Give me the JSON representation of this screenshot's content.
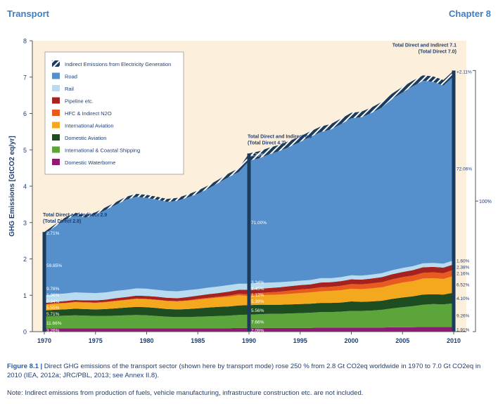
{
  "header": {
    "left": "Transport",
    "right": "Chapter 8"
  },
  "caption": {
    "label": "Figure 8.1 |",
    "text": " Direct GHG emissions of the transport sector (shown here by transport mode) rose 250 % from 2.8 Gt CO2eq worldwide in 1970 to 7.0 Gt CO2eq in 2010 (IEA, 2012a; JRC/PBL, 2013; see Annex II.8)."
  },
  "note": "Note: Indirect emissions from production of fuels, vehicle manufacturing, infrastructure construction etc. are not included.",
  "chart_data": {
    "type": "area",
    "ylabel": "GHG Emissions [GtCO2 eq/yr]",
    "xlim": [
      1970,
      2010
    ],
    "ylim": [
      0,
      8
    ],
    "xticks": [
      1970,
      1975,
      1980,
      1985,
      1990,
      1995,
      2000,
      2005,
      2010
    ],
    "yticks": [
      0,
      1,
      2,
      3,
      4,
      5,
      6,
      7,
      8
    ],
    "legend_position": "top-left",
    "x": [
      1970,
      1971,
      1972,
      1973,
      1974,
      1975,
      1976,
      1977,
      1978,
      1979,
      1980,
      1981,
      1982,
      1983,
      1984,
      1985,
      1986,
      1987,
      1988,
      1989,
      1990,
      1991,
      1992,
      1993,
      1994,
      1995,
      1996,
      1997,
      1998,
      1999,
      2000,
      2001,
      2002,
      2003,
      2004,
      2005,
      2006,
      2007,
      2008,
      2009,
      2010
    ],
    "series": [
      {
        "name": "Domestic Waterborne",
        "color": "#8e1a73",
        "values": [
          0.09,
          0.09,
          0.09,
          0.09,
          0.09,
          0.09,
          0.09,
          0.09,
          0.09,
          0.09,
          0.09,
          0.09,
          0.09,
          0.09,
          0.09,
          0.09,
          0.09,
          0.09,
          0.09,
          0.1,
          0.1,
          0.1,
          0.1,
          0.1,
          0.1,
          0.1,
          0.1,
          0.11,
          0.11,
          0.11,
          0.11,
          0.11,
          0.11,
          0.11,
          0.12,
          0.12,
          0.12,
          0.13,
          0.13,
          0.13,
          0.13
        ]
      },
      {
        "name": "International & Coastal Shipping",
        "color": "#5ba53a",
        "values": [
          0.33,
          0.34,
          0.35,
          0.36,
          0.35,
          0.34,
          0.34,
          0.35,
          0.36,
          0.37,
          0.36,
          0.34,
          0.32,
          0.31,
          0.31,
          0.32,
          0.33,
          0.34,
          0.35,
          0.36,
          0.37,
          0.38,
          0.39,
          0.39,
          0.4,
          0.41,
          0.42,
          0.43,
          0.43,
          0.44,
          0.46,
          0.46,
          0.47,
          0.49,
          0.52,
          0.55,
          0.58,
          0.61,
          0.63,
          0.62,
          0.65
        ]
      },
      {
        "name": "Domestic Aviation",
        "color": "#1e4d22",
        "values": [
          0.16,
          0.17,
          0.17,
          0.18,
          0.18,
          0.18,
          0.19,
          0.2,
          0.21,
          0.22,
          0.22,
          0.22,
          0.21,
          0.21,
          0.22,
          0.23,
          0.24,
          0.25,
          0.25,
          0.26,
          0.26,
          0.26,
          0.25,
          0.25,
          0.25,
          0.25,
          0.25,
          0.25,
          0.25,
          0.25,
          0.26,
          0.25,
          0.25,
          0.25,
          0.26,
          0.27,
          0.27,
          0.28,
          0.27,
          0.27,
          0.29
        ]
      },
      {
        "name": "International Aviation",
        "color": "#f4a81d",
        "values": [
          0.16,
          0.17,
          0.17,
          0.18,
          0.18,
          0.18,
          0.19,
          0.2,
          0.21,
          0.22,
          0.22,
          0.22,
          0.22,
          0.22,
          0.23,
          0.24,
          0.25,
          0.26,
          0.27,
          0.28,
          0.25,
          0.26,
          0.27,
          0.28,
          0.29,
          0.3,
          0.31,
          0.32,
          0.33,
          0.34,
          0.35,
          0.35,
          0.36,
          0.37,
          0.39,
          0.41,
          0.42,
          0.44,
          0.44,
          0.43,
          0.46
        ]
      },
      {
        "name": "HFC & Indirect N2O",
        "color": "#e85a1e",
        "values": [
          0.01,
          0.01,
          0.01,
          0.01,
          0.01,
          0.01,
          0.01,
          0.01,
          0.01,
          0.01,
          0.01,
          0.01,
          0.01,
          0.01,
          0.01,
          0.02,
          0.02,
          0.02,
          0.03,
          0.04,
          0.05,
          0.06,
          0.07,
          0.08,
          0.09,
          0.1,
          0.1,
          0.11,
          0.11,
          0.12,
          0.13,
          0.13,
          0.14,
          0.14,
          0.15,
          0.15,
          0.15,
          0.16,
          0.16,
          0.16,
          0.17
        ]
      },
      {
        "name": "Pipeline etc.",
        "color": "#a6221f",
        "values": [
          0.04,
          0.04,
          0.05,
          0.05,
          0.05,
          0.06,
          0.06,
          0.07,
          0.07,
          0.08,
          0.08,
          0.08,
          0.08,
          0.08,
          0.09,
          0.09,
          0.1,
          0.1,
          0.11,
          0.11,
          0.12,
          0.12,
          0.12,
          0.12,
          0.12,
          0.12,
          0.12,
          0.13,
          0.13,
          0.13,
          0.13,
          0.13,
          0.13,
          0.14,
          0.14,
          0.14,
          0.15,
          0.15,
          0.15,
          0.15,
          0.15
        ]
      },
      {
        "name": "Rail",
        "color": "#b8dbef",
        "values": [
          0.21,
          0.21,
          0.21,
          0.21,
          0.21,
          0.2,
          0.2,
          0.2,
          0.2,
          0.2,
          0.2,
          0.19,
          0.19,
          0.19,
          0.19,
          0.18,
          0.18,
          0.18,
          0.18,
          0.17,
          0.17,
          0.16,
          0.15,
          0.14,
          0.13,
          0.12,
          0.12,
          0.12,
          0.11,
          0.11,
          0.11,
          0.11,
          0.11,
          0.11,
          0.11,
          0.11,
          0.11,
          0.11,
          0.11,
          0.11,
          0.11
        ]
      },
      {
        "name": "Road",
        "color": "#5590cc",
        "values": [
          1.68,
          1.85,
          2.02,
          2.12,
          2.07,
          2.15,
          2.27,
          2.37,
          2.48,
          2.52,
          2.5,
          2.48,
          2.45,
          2.49,
          2.55,
          2.62,
          2.72,
          2.85,
          2.97,
          3.07,
          3.38,
          3.43,
          3.53,
          3.61,
          3.71,
          3.82,
          3.94,
          4.02,
          4.09,
          4.21,
          4.32,
          4.36,
          4.45,
          4.56,
          4.71,
          4.83,
          4.95,
          5.02,
          4.98,
          4.9,
          5.07
        ]
      },
      {
        "name": "Indirect Emissions from Electricity Generation",
        "color": "#1b3a5c",
        "values": [
          0.06,
          0.06,
          0.06,
          0.07,
          0.07,
          0.07,
          0.07,
          0.07,
          0.08,
          0.08,
          0.08,
          0.08,
          0.08,
          0.08,
          0.08,
          0.09,
          0.09,
          0.09,
          0.1,
          0.1,
          0.2,
          0.19,
          0.18,
          0.17,
          0.16,
          0.15,
          0.15,
          0.15,
          0.15,
          0.15,
          0.15,
          0.15,
          0.15,
          0.15,
          0.15,
          0.15,
          0.15,
          0.15,
          0.15,
          0.15,
          0.15
        ]
      }
    ],
    "annotations": [
      {
        "year": 1970,
        "title": "Total Direct and Indirect 2.9",
        "sub": "(Total Direct 2.8)",
        "pct": [
          "3.26%",
          "11.66%",
          "5.71%",
          "5.55%",
          "0.34%",
          "1.36%",
          "9.78%",
          "59.85%",
          "2.71%"
        ]
      },
      {
        "year": 1990,
        "title": "Total Direct and Indirect 4.9",
        "sub": "(Total Direct 4.7)",
        "pct": [
          "2.09%",
          "7.66%",
          "5.56%",
          "5.39%",
          "1.12%",
          "3.45%",
          "3.34%",
          "71.00%",
          "4.33%"
        ]
      },
      {
        "year": 2010,
        "title": "Total Direct and Indirect 7.1",
        "sub": "(Total Direct 7.0)",
        "pct": [
          "1.91%",
          "9.26%",
          "4.10%",
          "6.52%",
          "2.16%",
          "2.38%",
          "1.60%",
          "72.06%",
          "+2.11%"
        ]
      }
    ],
    "total_bracket_label": "100%"
  }
}
